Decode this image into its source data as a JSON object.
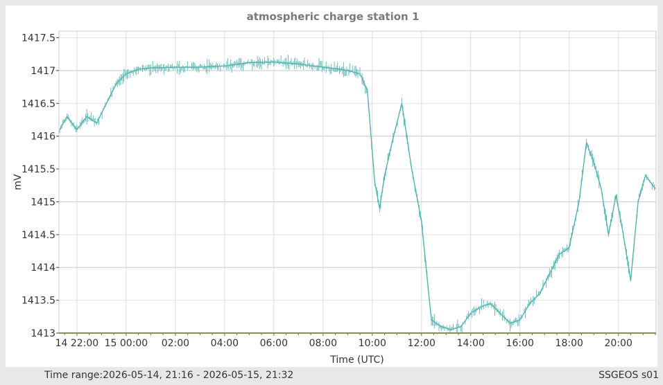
{
  "chart_data": {
    "type": "line",
    "title": "atmospheric charge station 1",
    "xlabel": "Time (UTC)",
    "ylabel": "mV",
    "x_tick_labels": [
      "14 22:00",
      "15 00:00",
      "02:00",
      "04:00",
      "06:00",
      "08:00",
      "10:00",
      "12:00",
      "14:00",
      "16:00",
      "18:00",
      "20:00"
    ],
    "x_ticks_hours": [
      22,
      24,
      26,
      28,
      30,
      32,
      34,
      36,
      38,
      40,
      42,
      44
    ],
    "y_tick_labels": [
      "1413",
      "1413.5",
      "1414",
      "1414.5",
      "1415",
      "1415.5",
      "1416",
      "1416.5",
      "1417",
      "1417.5"
    ],
    "y_ticks": [
      1413,
      1413.5,
      1414,
      1414.5,
      1415,
      1415.5,
      1416,
      1416.5,
      1417,
      1417.5
    ],
    "xlim_hours": [
      21.27,
      45.53
    ],
    "ylim": [
      1413,
      1417.6
    ],
    "grid": true,
    "series": [
      {
        "color": "#52b3b0",
        "x_hours": [
          21.3,
          21.6,
          22.0,
          22.4,
          22.8,
          23.2,
          23.6,
          24.0,
          24.5,
          25.0,
          26.0,
          27.0,
          28.0,
          29.0,
          30.0,
          31.0,
          32.0,
          32.5,
          33.0,
          33.5,
          33.8,
          34.1,
          34.3,
          34.5,
          34.8,
          35.2,
          35.6,
          36.0,
          36.4,
          36.8,
          37.2,
          37.6,
          38.0,
          38.4,
          38.8,
          39.2,
          39.6,
          40.0,
          40.4,
          40.8,
          41.2,
          41.6,
          42.0,
          42.4,
          42.7,
          43.0,
          43.3,
          43.6,
          43.9,
          44.2,
          44.5,
          44.8,
          45.1,
          45.5
        ],
        "values": [
          1416.1,
          1416.3,
          1416.1,
          1416.3,
          1416.2,
          1416.5,
          1416.8,
          1416.95,
          1417.02,
          1417.04,
          1417.05,
          1417.05,
          1417.07,
          1417.12,
          1417.13,
          1417.1,
          1417.05,
          1417.03,
          1417.0,
          1416.95,
          1416.7,
          1415.3,
          1414.9,
          1415.4,
          1415.9,
          1416.5,
          1415.5,
          1414.7,
          1413.2,
          1413.1,
          1413.05,
          1413.1,
          1413.3,
          1413.4,
          1413.45,
          1413.3,
          1413.15,
          1413.2,
          1413.45,
          1413.6,
          1413.9,
          1414.2,
          1414.3,
          1415.0,
          1415.9,
          1415.6,
          1415.2,
          1414.5,
          1415.1,
          1414.5,
          1413.8,
          1415.0,
          1415.4,
          1415.2
        ]
      }
    ]
  },
  "footer": {
    "range_prefix": "Time range:",
    "range_value": "2026-05-14, 21:16 - 2026-05-15, 21:32",
    "station": "SSGEOS s01"
  }
}
